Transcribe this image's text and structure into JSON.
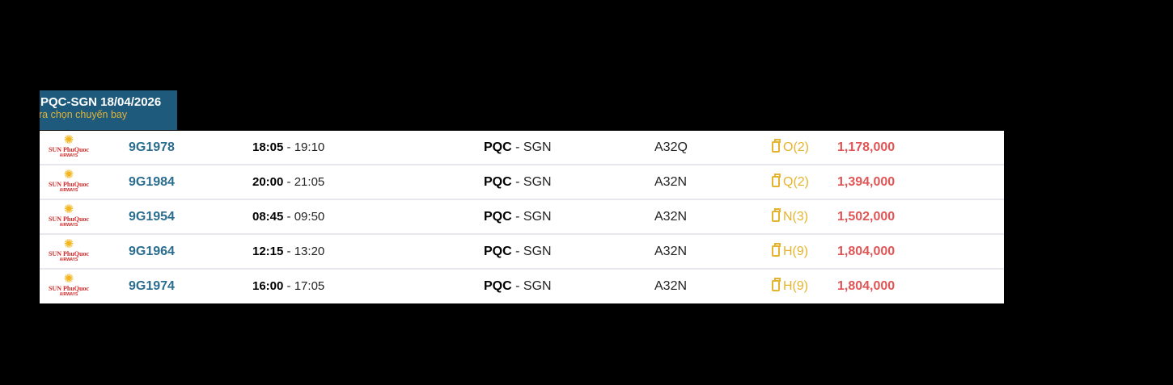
{
  "header": {
    "title": "PQC-SGN 18/04/2026",
    "subtitle": "ra chọn chuyến bay"
  },
  "airline_logo": {
    "text": "SUN PhuQuoc",
    "subtext": "AIRWAYS"
  },
  "flights": [
    {
      "flight_no": "9G1978",
      "depart": "18:05",
      "arrive": "19:10",
      "from": "PQC",
      "to": "SGN",
      "aircraft": "A32Q",
      "fare_class": "O(2)",
      "price": "1,178,000"
    },
    {
      "flight_no": "9G1984",
      "depart": "20:00",
      "arrive": "21:05",
      "from": "PQC",
      "to": "SGN",
      "aircraft": "A32N",
      "fare_class": "Q(2)",
      "price": "1,394,000"
    },
    {
      "flight_no": "9G1954",
      "depart": "08:45",
      "arrive": "09:50",
      "from": "PQC",
      "to": "SGN",
      "aircraft": "A32N",
      "fare_class": "N(3)",
      "price": "1,502,000"
    },
    {
      "flight_no": "9G1964",
      "depart": "12:15",
      "arrive": "13:20",
      "from": "PQC",
      "to": "SGN",
      "aircraft": "A32N",
      "fare_class": "H(9)",
      "price": "1,804,000"
    },
    {
      "flight_no": "9G1974",
      "depart": "16:00",
      "arrive": "17:05",
      "from": "PQC",
      "to": "SGN",
      "aircraft": "A32N",
      "fare_class": "H(9)",
      "price": "1,804,000"
    }
  ]
}
